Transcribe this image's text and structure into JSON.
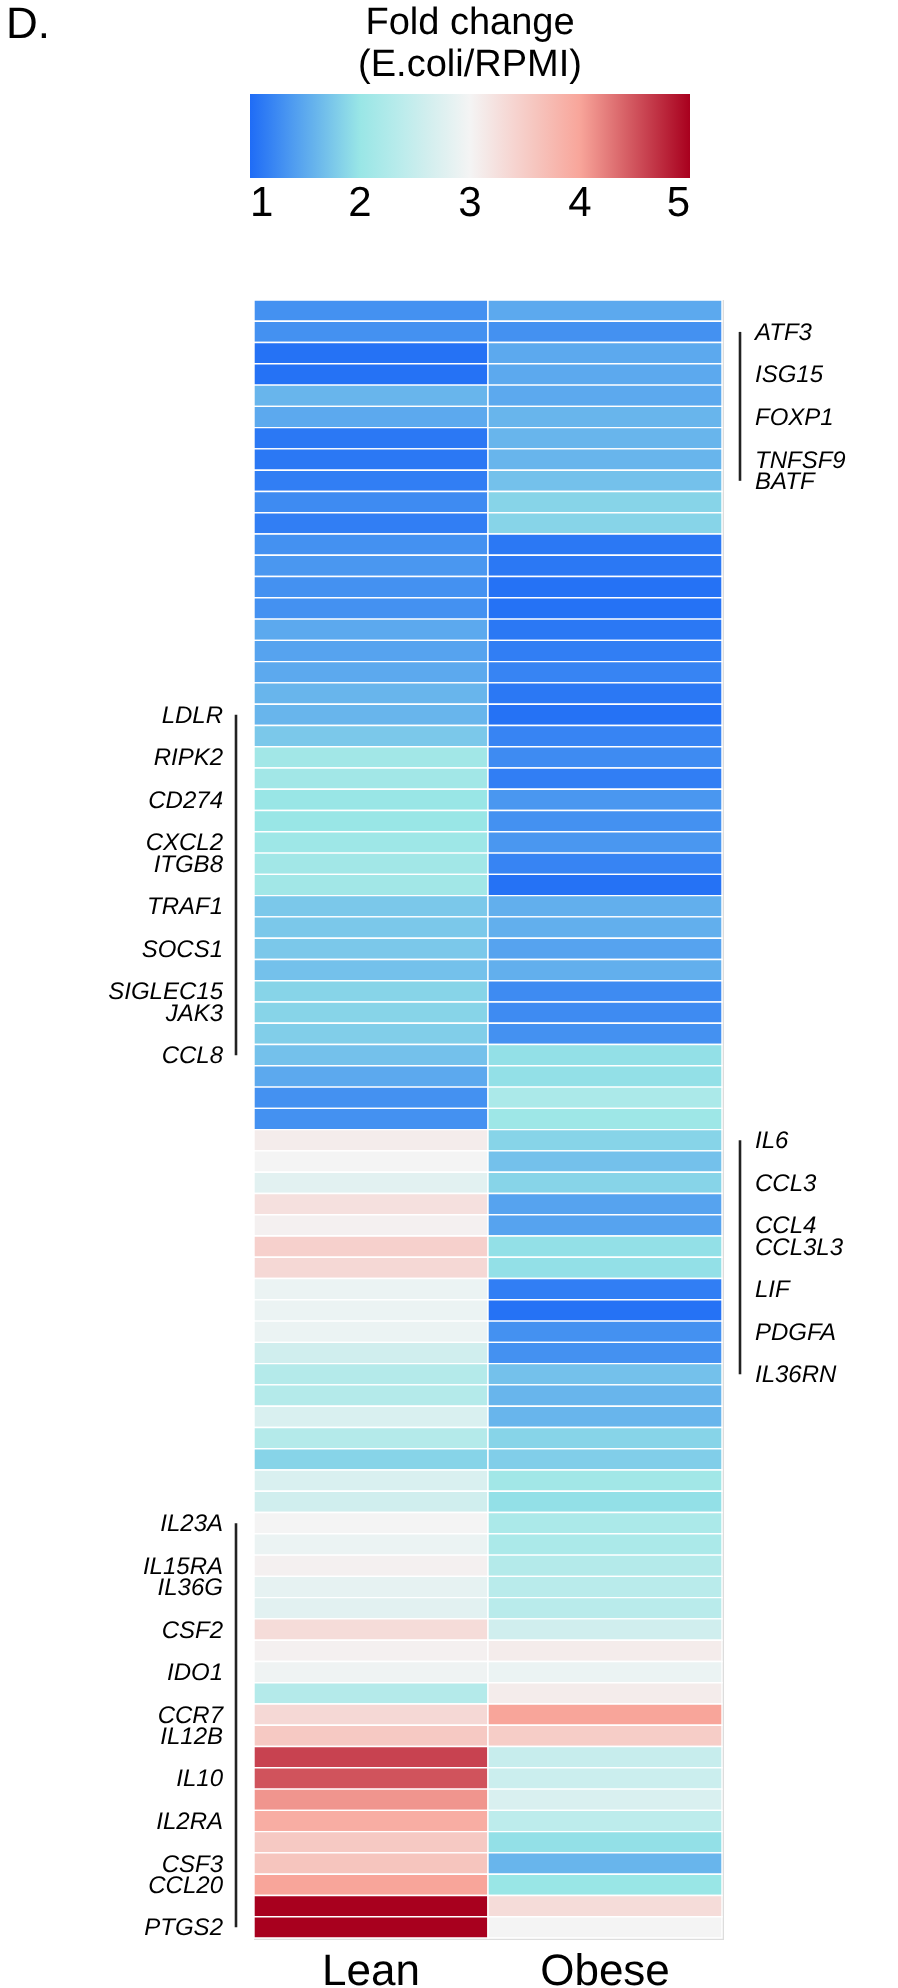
{
  "chart_data": {
    "type": "heatmap",
    "title": "D.",
    "clabel": "Fold change\n(E.coli/RPMI)",
    "categories": [
      "Lean",
      "Obese"
    ],
    "y_categories": [
      null,
      null,
      null,
      null,
      null,
      null,
      null,
      null,
      null,
      null,
      null,
      null,
      null,
      null,
      null,
      null,
      null,
      null,
      null,
      "LDLR",
      null,
      "RIPK2",
      null,
      "CD274",
      null,
      "CXCL2",
      "ITGB8",
      null,
      "TRAF1",
      null,
      "SOCS1",
      null,
      "SIGLEC15",
      "JAK3",
      null,
      "CCL8",
      null,
      null,
      null,
      null,
      null,
      null,
      null,
      null,
      null,
      null,
      null,
      null,
      null,
      null,
      null,
      null,
      null,
      null,
      null,
      null,
      null,
      "IL23A",
      null,
      "IL15RA",
      "IL36G",
      null,
      "CSF2",
      null,
      "IDO1",
      null,
      "CCR7",
      "IL12B",
      null,
      "IL10",
      null,
      "IL2RA",
      null,
      "CSF3",
      "CCL20",
      null,
      "PTGS2"
    ],
    "y2_categories": [
      null,
      "ATF3",
      null,
      "ISG15",
      null,
      "FOXP1",
      null,
      "TNFSF9",
      "BATF",
      null,
      null,
      null,
      null,
      null,
      null,
      null,
      null,
      null,
      null,
      null,
      null,
      null,
      null,
      null,
      null,
      null,
      null,
      null,
      null,
      null,
      null,
      null,
      null,
      null,
      null,
      null,
      null,
      null,
      null,
      "IL6",
      null,
      "CCL3",
      null,
      "CCL4",
      "CCL3L3",
      null,
      "LIF",
      null,
      "PDGFA",
      null,
      "IL36RN",
      null,
      null,
      null,
      null,
      null,
      null,
      null,
      null,
      null,
      null,
      null,
      null,
      null,
      null,
      null,
      null,
      null,
      null,
      null,
      null,
      null,
      null,
      null,
      null,
      null,
      null
    ],
    "cells": [
      [
        1.3,
        1.5
      ],
      [
        1.3,
        1.3
      ],
      [
        1.05,
        1.5
      ],
      [
        1.05,
        1.5
      ],
      [
        1.6,
        1.5
      ],
      [
        1.5,
        1.6
      ],
      [
        1.1,
        1.6
      ],
      [
        1.1,
        1.6
      ],
      [
        1.15,
        1.7
      ],
      [
        1.25,
        1.85
      ],
      [
        1.15,
        1.85
      ],
      [
        1.3,
        1.1
      ],
      [
        1.35,
        1.1
      ],
      [
        1.3,
        1.05
      ],
      [
        1.3,
        1.05
      ],
      [
        1.5,
        1.1
      ],
      [
        1.45,
        1.15
      ],
      [
        1.5,
        1.2
      ],
      [
        1.6,
        1.1
      ],
      [
        1.6,
        1.05
      ],
      [
        1.75,
        1.2
      ],
      [
        2.1,
        1.25
      ],
      [
        2.1,
        1.15
      ],
      [
        2.0,
        1.35
      ],
      [
        2.0,
        1.3
      ],
      [
        2.05,
        1.35
      ],
      [
        2.1,
        1.2
      ],
      [
        2.1,
        1.05
      ],
      [
        1.75,
        1.55
      ],
      [
        1.75,
        1.55
      ],
      [
        1.75,
        1.45
      ],
      [
        1.7,
        1.55
      ],
      [
        1.85,
        1.25
      ],
      [
        1.85,
        1.25
      ],
      [
        1.8,
        1.3
      ],
      [
        1.7,
        1.95
      ],
      [
        1.5,
        1.95
      ],
      [
        1.3,
        2.2
      ],
      [
        1.3,
        2.05
      ],
      [
        3.1,
        1.85
      ],
      [
        3.0,
        1.7
      ],
      [
        2.8,
        1.85
      ],
      [
        3.25,
        1.45
      ],
      [
        3.05,
        1.45
      ],
      [
        3.45,
        1.95
      ],
      [
        3.35,
        1.95
      ],
      [
        2.9,
        1.15
      ],
      [
        2.9,
        1.05
      ],
      [
        2.9,
        1.3
      ],
      [
        2.6,
        1.3
      ],
      [
        2.3,
        1.7
      ],
      [
        2.3,
        1.6
      ],
      [
        2.7,
        1.6
      ],
      [
        2.3,
        1.85
      ],
      [
        1.85,
        1.8
      ],
      [
        2.7,
        2.1
      ],
      [
        2.6,
        1.95
      ],
      [
        3.0,
        2.2
      ],
      [
        2.9,
        2.2
      ],
      [
        3.05,
        2.3
      ],
      [
        2.85,
        2.35
      ],
      [
        2.8,
        2.35
      ],
      [
        3.3,
        2.6
      ],
      [
        3.05,
        3.1
      ],
      [
        2.95,
        2.9
      ],
      [
        2.3,
        3.1
      ],
      [
        3.35,
        4.0
      ],
      [
        3.55,
        3.5
      ],
      [
        4.6,
        2.5
      ],
      [
        4.5,
        2.55
      ],
      [
        4.1,
        2.7
      ],
      [
        3.9,
        2.4
      ],
      [
        3.55,
        1.95
      ],
      [
        3.6,
        1.6
      ],
      [
        4.0,
        2.0
      ],
      [
        5.0,
        3.3
      ],
      [
        5.0,
        3.0
      ]
    ],
    "clim": [
      1,
      5
    ],
    "cticks": [
      1,
      2,
      3,
      4,
      5
    ]
  }
}
